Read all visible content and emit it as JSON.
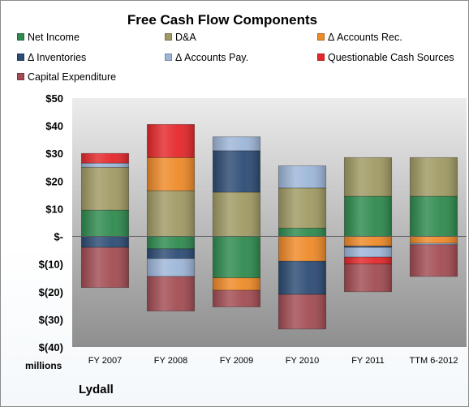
{
  "chart_data": {
    "type": "bar",
    "stacked": true,
    "title": "Free Cash Flow Components",
    "ylabel": "millions",
    "company": "Lydall",
    "categories": [
      "FY 2007",
      "FY 2008",
      "FY 2009",
      "FY 2010",
      "FY 2011",
      "TTM 6-2012"
    ],
    "ylim": [
      -40,
      50
    ],
    "yticks": [
      50,
      40,
      30,
      20,
      10,
      0,
      -10,
      -20,
      -30,
      -40
    ],
    "ytick_labels": [
      "$50",
      "$40",
      "$30",
      "$20",
      "$10",
      "$-",
      "$(10)",
      "$(20)",
      "$(30)",
      "$(40)"
    ],
    "legend_placement": "top",
    "grid": false,
    "series": [
      {
        "name": "Net Income",
        "color": "#2e8a4e",
        "values": [
          9.5,
          -4.5,
          -15,
          3,
          14.5,
          14.5
        ]
      },
      {
        "name": "D&A",
        "color": "#a09a64",
        "values": [
          15.5,
          16.5,
          16,
          14.5,
          14,
          14
        ]
      },
      {
        "name": "Δ Accounts Rec.",
        "color": "#ee8a28",
        "values": [
          0,
          12,
          -4.5,
          -9,
          -3.5,
          -2.5
        ]
      },
      {
        "name": "Δ Inventories",
        "color": "#2c4b74",
        "values": [
          -4,
          -3.5,
          15,
          -12,
          -0.5,
          0
        ]
      },
      {
        "name": "Δ Accounts Pay.",
        "color": "#9db6d8",
        "values": [
          1.5,
          -6.5,
          5,
          8,
          -3.5,
          -0.5
        ]
      },
      {
        "name": "Questionable Cash Sources",
        "color": "#e4272a",
        "values": [
          3.5,
          12,
          0,
          0,
          -2.5,
          0
        ]
      },
      {
        "name": "Capital Expenditure",
        "color": "#a24c52",
        "values": [
          -14.5,
          -12.5,
          -6,
          -12.5,
          -10,
          -11.5
        ]
      }
    ]
  }
}
